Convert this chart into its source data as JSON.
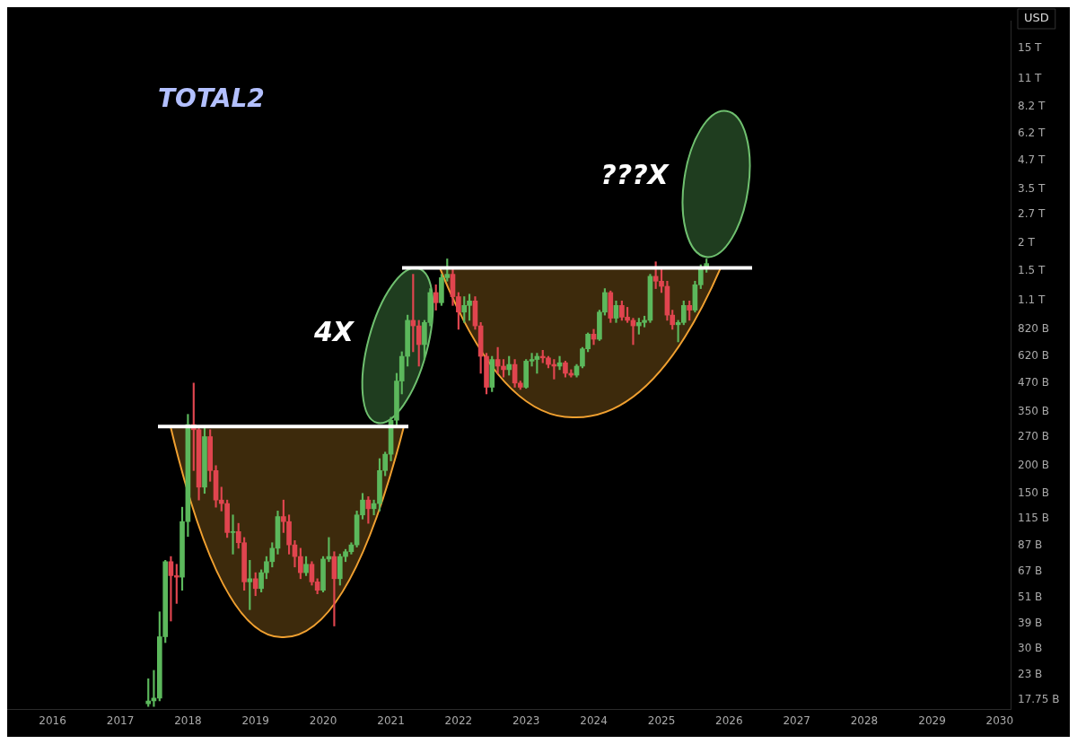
{
  "chart_data": {
    "type": "candlestick",
    "title": "TOTAL2",
    "ylabel": "USD",
    "log": true,
    "x": [
      "2017-06",
      "2017-07",
      "2017-08",
      "2017-09",
      "2017-10",
      "2017-11",
      "2017-12",
      "2018-01",
      "2018-02",
      "2018-03",
      "2018-04",
      "2018-05",
      "2018-06",
      "2018-07",
      "2018-08",
      "2018-09",
      "2018-10",
      "2018-11",
      "2018-12",
      "2019-01",
      "2019-02",
      "2019-03",
      "2019-04",
      "2019-05",
      "2019-06",
      "2019-07",
      "2019-08",
      "2019-09",
      "2019-10",
      "2019-11",
      "2019-12",
      "2020-01",
      "2020-02",
      "2020-03",
      "2020-04",
      "2020-05",
      "2020-06",
      "2020-07",
      "2020-08",
      "2020-09",
      "2020-10",
      "2020-11",
      "2020-12",
      "2021-01",
      "2021-02",
      "2021-03",
      "2021-04",
      "2021-05",
      "2021-06",
      "2021-07",
      "2021-08",
      "2021-09",
      "2021-10",
      "2021-11",
      "2021-12",
      "2022-01",
      "2022-02",
      "2022-03",
      "2022-04",
      "2022-05",
      "2022-06",
      "2022-07",
      "2022-08",
      "2022-09",
      "2022-10",
      "2022-11",
      "2022-12",
      "2023-01",
      "2023-02",
      "2023-03",
      "2023-04",
      "2023-05",
      "2023-06",
      "2023-07",
      "2023-08",
      "2023-09",
      "2023-10",
      "2023-11",
      "2023-12",
      "2024-01",
      "2024-02",
      "2024-03",
      "2024-04",
      "2024-05",
      "2024-06",
      "2024-07",
      "2024-08",
      "2024-09",
      "2024-10",
      "2024-11",
      "2024-12",
      "2025-01",
      "2025-02",
      "2025-03",
      "2025-04",
      "2025-05",
      "2025-06",
      "2025-07",
      "2025-08",
      "2025-09"
    ],
    "ohlc": [
      [
        17000000000.0,
        22000000000.0,
        16500000000.0,
        17500000000.0
      ],
      [
        17500000000.0,
        24000000000.0,
        16500000000.0,
        18000000000.0
      ],
      [
        18000000000.0,
        44000000000.0,
        17500000000.0,
        34000000000.0
      ],
      [
        34000000000.0,
        75000000000.0,
        32000000000.0,
        74000000000.0
      ],
      [
        74000000000.0,
        78000000000.0,
        40000000000.0,
        64000000000.0
      ],
      [
        64000000000.0,
        72000000000.0,
        48000000000.0,
        63000000000.0
      ],
      [
        63000000000.0,
        130000000000.0,
        55000000000.0,
        112000000000.0
      ],
      [
        112000000000.0,
        340000000000.0,
        96000000000.0,
        306000000000.0
      ],
      [
        306000000000.0,
        470000000000.0,
        190000000000.0,
        290000000000.0
      ],
      [
        290000000000.0,
        300000000000.0,
        140000000000.0,
        160000000000.0
      ],
      [
        160000000000.0,
        300000000000.0,
        150000000000.0,
        270000000000.0
      ],
      [
        270000000000.0,
        290000000000.0,
        170000000000.0,
        190000000000.0
      ],
      [
        190000000000.0,
        200000000000.0,
        130000000000.0,
        140000000000.0
      ],
      [
        140000000000.0,
        160000000000.0,
        125000000000.0,
        135000000000.0
      ],
      [
        135000000000.0,
        140000000000.0,
        95000000000.0,
        100000000000.0
      ],
      [
        100000000000.0,
        120000000000.0,
        80000000000.0,
        101000000000.0
      ],
      [
        101000000000.0,
        110000000000.0,
        85000000000.0,
        90000000000.0
      ],
      [
        90000000000.0,
        95000000000.0,
        55000000000.0,
        60000000000.0
      ],
      [
        60000000000.0,
        75000000000.0,
        45000000000.0,
        62000000000.0
      ],
      [
        62000000000.0,
        66000000000.0,
        52000000000.0,
        56000000000.0
      ],
      [
        56000000000.0,
        68000000000.0,
        54000000000.0,
        66000000000.0
      ],
      [
        66000000000.0,
        78000000000.0,
        62000000000.0,
        74000000000.0
      ],
      [
        74000000000.0,
        90000000000.0,
        70000000000.0,
        85000000000.0
      ],
      [
        85000000000.0,
        125000000000.0,
        80000000000.0,
        118000000000.0
      ],
      [
        118000000000.0,
        140000000000.0,
        100000000000.0,
        112000000000.0
      ],
      [
        112000000000.0,
        120000000000.0,
        80000000000.0,
        88000000000.0
      ],
      [
        88000000000.0,
        92000000000.0,
        70000000000.0,
        78000000000.0
      ],
      [
        78000000000.0,
        85000000000.0,
        62000000000.0,
        66000000000.0
      ],
      [
        66000000000.0,
        78000000000.0,
        64000000000.0,
        72000000000.0
      ],
      [
        72000000000.0,
        74000000000.0,
        58000000000.0,
        60000000000.0
      ],
      [
        60000000000.0,
        62000000000.0,
        53000000000.0,
        55000000000.0
      ],
      [
        55000000000.0,
        78000000000.0,
        54000000000.0,
        76000000000.0
      ],
      [
        76000000000.0,
        95000000000.0,
        74000000000.0,
        78000000000.0
      ],
      [
        78000000000.0,
        82000000000.0,
        38000000000.0,
        62000000000.0
      ],
      [
        62000000000.0,
        80000000000.0,
        58000000000.0,
        78000000000.0
      ],
      [
        78000000000.0,
        84000000000.0,
        74000000000.0,
        82000000000.0
      ],
      [
        82000000000.0,
        90000000000.0,
        80000000000.0,
        88000000000.0
      ],
      [
        88000000000.0,
        125000000000.0,
        86000000000.0,
        120000000000.0
      ],
      [
        120000000000.0,
        150000000000.0,
        115000000000.0,
        140000000000.0
      ],
      [
        140000000000.0,
        145000000000.0,
        110000000000.0,
        128000000000.0
      ],
      [
        128000000000.0,
        140000000000.0,
        120000000000.0,
        135000000000.0
      ],
      [
        135000000000.0,
        215000000000.0,
        125000000000.0,
        190000000000.0
      ],
      [
        190000000000.0,
        230000000000.0,
        180000000000.0,
        225000000000.0
      ],
      [
        225000000000.0,
        330000000000.0,
        210000000000.0,
        320000000000.0
      ],
      [
        320000000000.0,
        520000000000.0,
        300000000000.0,
        480000000000.0
      ],
      [
        480000000000.0,
        650000000000.0,
        420000000000.0,
        620000000000.0
      ],
      [
        620000000000.0,
        950000000000.0,
        560000000000.0,
        900000000000.0
      ],
      [
        900000000000.0,
        1450000000000.0,
        650000000000.0,
        850000000000.0
      ],
      [
        850000000000.0,
        900000000000.0,
        560000000000.0,
        700000000000.0
      ],
      [
        700000000000.0,
        900000000000.0,
        600000000000.0,
        880000000000.0
      ],
      [
        880000000000.0,
        1250000000000.0,
        850000000000.0,
        1200000000000.0
      ],
      [
        1200000000000.0,
        1300000000000.0,
        1000000000000.0,
        1080000000000.0
      ],
      [
        1080000000000.0,
        1450000000000.0,
        1050000000000.0,
        1400000000000.0
      ],
      [
        1400000000000.0,
        1700000000000.0,
        1350000000000.0,
        1450000000000.0
      ],
      [
        1450000000000.0,
        1550000000000.0,
        1050000000000.0,
        1150000000000.0
      ],
      [
        1150000000000.0,
        1200000000000.0,
        820000000000.0,
        980000000000.0
      ],
      [
        980000000000.0,
        1150000000000.0,
        880000000000.0,
        1050000000000.0
      ],
      [
        1050000000000.0,
        1180000000000.0,
        900000000000.0,
        1100000000000.0
      ],
      [
        1100000000000.0,
        1150000000000.0,
        820000000000.0,
        850000000000.0
      ],
      [
        850000000000.0,
        880000000000.0,
        520000000000.0,
        620000000000.0
      ],
      [
        620000000000.0,
        640000000000.0,
        420000000000.0,
        450000000000.0
      ],
      [
        450000000000.0,
        620000000000.0,
        430000000000.0,
        600000000000.0
      ],
      [
        600000000000.0,
        680000000000.0,
        520000000000.0,
        560000000000.0
      ],
      [
        560000000000.0,
        600000000000.0,
        500000000000.0,
        540000000000.0
      ],
      [
        540000000000.0,
        620000000000.0,
        510000000000.0,
        570000000000.0
      ],
      [
        570000000000.0,
        600000000000.0,
        450000000000.0,
        470000000000.0
      ],
      [
        470000000000.0,
        480000000000.0,
        440000000000.0,
        450000000000.0
      ],
      [
        450000000000.0,
        600000000000.0,
        445000000000.0,
        590000000000.0
      ],
      [
        590000000000.0,
        640000000000.0,
        560000000000.0,
        600000000000.0
      ],
      [
        600000000000.0,
        640000000000.0,
        520000000000.0,
        620000000000.0
      ],
      [
        620000000000.0,
        660000000000.0,
        580000000000.0,
        610000000000.0
      ],
      [
        610000000000.0,
        620000000000.0,
        550000000000.0,
        570000000000.0
      ],
      [
        570000000000.0,
        600000000000.0,
        490000000000.0,
        560000000000.0
      ],
      [
        560000000000.0,
        620000000000.0,
        540000000000.0,
        580000000000.0
      ],
      [
        580000000000.0,
        590000000000.0,
        500000000000.0,
        520000000000.0
      ],
      [
        520000000000.0,
        540000000000.0,
        500000000000.0,
        510000000000.0
      ],
      [
        510000000000.0,
        570000000000.0,
        500000000000.0,
        560000000000.0
      ],
      [
        560000000000.0,
        680000000000.0,
        550000000000.0,
        670000000000.0
      ],
      [
        670000000000.0,
        790000000000.0,
        650000000000.0,
        780000000000.0
      ],
      [
        780000000000.0,
        820000000000.0,
        700000000000.0,
        740000000000.0
      ],
      [
        740000000000.0,
        1000000000000.0,
        730000000000.0,
        980000000000.0
      ],
      [
        980000000000.0,
        1250000000000.0,
        950000000000.0,
        1200000000000.0
      ],
      [
        1200000000000.0,
        1220000000000.0,
        880000000000.0,
        920000000000.0
      ],
      [
        920000000000.0,
        1100000000000.0,
        880000000000.0,
        1050000000000.0
      ],
      [
        1050000000000.0,
        1100000000000.0,
        900000000000.0,
        930000000000.0
      ],
      [
        930000000000.0,
        1030000000000.0,
        880000000000.0,
        900000000000.0
      ],
      [
        900000000000.0,
        920000000000.0,
        700000000000.0,
        850000000000.0
      ],
      [
        850000000000.0,
        920000000000.0,
        780000000000.0,
        880000000000.0
      ],
      [
        880000000000.0,
        940000000000.0,
        840000000000.0,
        900000000000.0
      ],
      [
        900000000000.0,
        1450000000000.0,
        880000000000.0,
        1420000000000.0
      ],
      [
        1420000000000.0,
        1650000000000.0,
        1250000000000.0,
        1350000000000.0
      ],
      [
        1350000000000.0,
        1550000000000.0,
        1200000000000.0,
        1280000000000.0
      ],
      [
        1280000000000.0,
        1350000000000.0,
        900000000000.0,
        950000000000.0
      ],
      [
        950000000000.0,
        1000000000000.0,
        820000000000.0,
        860000000000.0
      ],
      [
        860000000000.0,
        900000000000.0,
        720000000000.0,
        880000000000.0
      ],
      [
        880000000000.0,
        1100000000000.0,
        860000000000.0,
        1050000000000.0
      ],
      [
        1050000000000.0,
        1100000000000.0,
        900000000000.0,
        1000000000000.0
      ],
      [
        1000000000000.0,
        1350000000000.0,
        980000000000.0,
        1300000000000.0
      ],
      [
        1300000000000.0,
        1600000000000.0,
        1250000000000.0,
        1550000000000.0
      ],
      [
        1550000000000.0,
        1700000000000.0,
        1480000000000.0,
        1620000000000.0
      ]
    ],
    "xlim": [
      "2015-05",
      "2030-03"
    ],
    "xticks": [
      "2016",
      "2017",
      "2018",
      "2019",
      "2020",
      "2021",
      "2022",
      "2023",
      "2024",
      "2025",
      "2026",
      "2027",
      "2028",
      "2029",
      "2030"
    ],
    "ylim": [
      16000000000.0,
      20000000000000.0
    ],
    "yticks": [
      {
        "value": 15000000000000.0,
        "label": "15 T"
      },
      {
        "value": 11000000000000.0,
        "label": "11 T"
      },
      {
        "value": 8200000000000.0,
        "label": "8.2 T"
      },
      {
        "value": 6200000000000.0,
        "label": "6.2 T"
      },
      {
        "value": 4700000000000.0,
        "label": "4.7 T"
      },
      {
        "value": 3500000000000.0,
        "label": "3.5 T"
      },
      {
        "value": 2700000000000.0,
        "label": "2.7 T"
      },
      {
        "value": 2000000000000.0,
        "label": "2 T"
      },
      {
        "value": 1500000000000.0,
        "label": "1.5 T"
      },
      {
        "value": 1100000000000.0,
        "label": "1.1 T"
      },
      {
        "value": 820000000000.0,
        "label": "820 B"
      },
      {
        "value": 620000000000.0,
        "label": "620 B"
      },
      {
        "value": 470000000000.0,
        "label": "470 B"
      },
      {
        "value": 350000000000.0,
        "label": "350 B"
      },
      {
        "value": 270000000000.0,
        "label": "270 B"
      },
      {
        "value": 200000000000.0,
        "label": "200 B"
      },
      {
        "value": 150000000000.0,
        "label": "150 B"
      },
      {
        "value": 115000000000.0,
        "label": "115 B"
      },
      {
        "value": 87000000000.0,
        "label": "87 B"
      },
      {
        "value": 67000000000.0,
        "label": "67 B"
      },
      {
        "value": 51000000000.0,
        "label": "51 B"
      },
      {
        "value": 39000000000.0,
        "label": "39 B"
      },
      {
        "value": 30000000000.0,
        "label": "30 B"
      },
      {
        "value": 23000000000.0,
        "label": "23 B"
      },
      {
        "value": 17750000000.0,
        "label": "17.75 B"
      }
    ],
    "ref_lines": [
      {
        "axis": "y",
        "value": 300000000000.0,
        "color": "#ffffff"
      },
      {
        "axis": "y",
        "value": 1550000000000.0,
        "color": "#ffffff"
      }
    ],
    "annotations": [
      "4X",
      "???X"
    ]
  }
}
